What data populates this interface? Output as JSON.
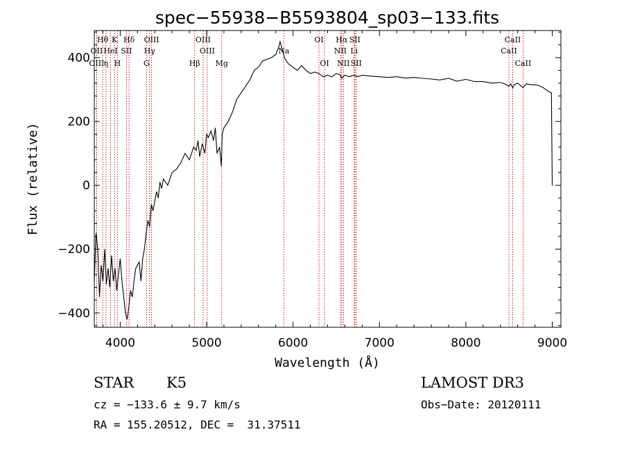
{
  "chart_data": {
    "type": "line",
    "title": "spec−55938−B5593804_sp03−133.fits",
    "xlabel": "Wavelength (Å)",
    "ylabel": "Flux (relative)",
    "xlim": [
      3700,
      9100
    ],
    "ylim": [
      -445,
      485
    ],
    "x_ticks": [
      4000,
      5000,
      6000,
      7000,
      8000,
      9000
    ],
    "x_tick_labels": [
      "4000",
      "5000",
      "6000",
      "7000",
      "8000",
      "9000"
    ],
    "y_ticks": [
      -400,
      -200,
      0,
      200,
      400
    ],
    "y_tick_labels": [
      "−400",
      "−200",
      "0",
      "200",
      "400"
    ],
    "series": [
      {
        "name": "spectrum",
        "x": [
          3700,
          3720,
          3740,
          3760,
          3780,
          3800,
          3820,
          3840,
          3860,
          3880,
          3900,
          3920,
          3940,
          3960,
          3980,
          4000,
          4020,
          4040,
          4060,
          4080,
          4100,
          4120,
          4140,
          4160,
          4180,
          4200,
          4220,
          4240,
          4260,
          4280,
          4300,
          4320,
          4340,
          4360,
          4380,
          4400,
          4420,
          4440,
          4460,
          4480,
          4500,
          4550,
          4600,
          4650,
          4700,
          4750,
          4800,
          4850,
          4880,
          4900,
          4920,
          4950,
          4980,
          5000,
          5020,
          5050,
          5080,
          5100,
          5120,
          5150,
          5170,
          5180,
          5190,
          5200,
          5250,
          5300,
          5350,
          5400,
          5450,
          5500,
          5550,
          5600,
          5650,
          5700,
          5750,
          5800,
          5830,
          5850,
          5870,
          5880,
          5893,
          5900,
          5920,
          5950,
          6000,
          6050,
          6100,
          6150,
          6200,
          6250,
          6300,
          6350,
          6400,
          6450,
          6500,
          6550,
          6563,
          6580,
          6600,
          6650,
          6700,
          6750,
          6800,
          6900,
          7000,
          7100,
          7200,
          7300,
          7400,
          7500,
          7600,
          7700,
          7800,
          7900,
          8000,
          8100,
          8200,
          8300,
          8400,
          8450,
          8498,
          8520,
          8542,
          8560,
          8600,
          8662,
          8680,
          8700,
          8750,
          8800,
          8850,
          8900,
          8950,
          8990,
          9000,
          9005
        ],
        "y": [
          -300,
          -150,
          -200,
          -350,
          -250,
          -300,
          -200,
          -310,
          -260,
          -320,
          -220,
          -300,
          -260,
          -330,
          -280,
          -230,
          -300,
          -350,
          -400,
          -420,
          -380,
          -330,
          -350,
          -300,
          -260,
          -250,
          -240,
          -300,
          -230,
          -200,
          -150,
          -110,
          -130,
          -60,
          -80,
          -50,
          -20,
          -40,
          10,
          -10,
          20,
          0,
          40,
          50,
          70,
          100,
          80,
          120,
          110,
          140,
          90,
          130,
          100,
          160,
          150,
          170,
          140,
          180,
          100,
          120,
          60,
          160,
          170,
          180,
          200,
          230,
          270,
          290,
          310,
          330,
          360,
          370,
          390,
          395,
          400,
          410,
          430,
          450,
          430,
          420,
          410,
          400,
          390,
          380,
          370,
          360,
          375,
          360,
          350,
          355,
          350,
          340,
          345,
          340,
          350,
          345,
          335,
          340,
          345,
          340,
          345,
          340,
          345,
          342,
          340,
          338,
          340,
          336,
          338,
          335,
          333,
          330,
          335,
          326,
          332,
          325,
          325,
          320,
          322,
          318,
          310,
          318,
          305,
          315,
          320,
          306,
          312,
          318,
          315,
          315,
          312,
          305,
          295,
          290,
          0,
          0
        ]
      }
    ],
    "lines": [
      {
        "label": "Hθ",
        "x": 3797,
        "row": 1
      },
      {
        "label": "OII",
        "x": 3727,
        "row": 2
      },
      {
        "label": "OIII",
        "x": 3727,
        "row": 3
      },
      {
        "label": "K",
        "x": 3934,
        "row": 1
      },
      {
        "label": "HeI",
        "x": 3889,
        "row": 2
      },
      {
        "label": "η",
        "x": 3835,
        "row": 3
      },
      {
        "label": "Hδ",
        "x": 4102,
        "row": 1
      },
      {
        "label": "SII",
        "x": 4072,
        "row": 2
      },
      {
        "label": "H",
        "x": 3968,
        "row": 3
      },
      {
        "label": "OIII",
        "x": 4363,
        "row": 1
      },
      {
        "label": "Hγ",
        "x": 4340,
        "row": 2
      },
      {
        "label": "G",
        "x": 4305,
        "row": 3
      },
      {
        "label": "OIII",
        "x": 4959,
        "row": 1
      },
      {
        "label": "OIII",
        "x": 5007,
        "row": 2
      },
      {
        "label": "Hβ",
        "x": 4861,
        "row": 3
      },
      {
        "label": "Mg",
        "x": 5175,
        "row": 3
      },
      {
        "label": "Na",
        "x": 5893,
        "row": 2
      },
      {
        "label": "OI",
        "x": 6300,
        "row": 1
      },
      {
        "label": "OI",
        "x": 6364,
        "row": 3
      },
      {
        "label": "Hα",
        "x": 6563,
        "row": 1
      },
      {
        "label": "NII",
        "x": 6548,
        "row": 2
      },
      {
        "label": "NII",
        "x": 6583,
        "row": 3
      },
      {
        "label": "SII",
        "x": 6716,
        "row": 1
      },
      {
        "label": "Li",
        "x": 6707,
        "row": 2
      },
      {
        "label": "SII",
        "x": 6731,
        "row": 3
      },
      {
        "label": "CaII",
        "x": 8542,
        "row": 1
      },
      {
        "label": "CaII",
        "x": 8498,
        "row": 2
      },
      {
        "label": "CaII",
        "x": 8662,
        "row": 3
      }
    ],
    "colors": {
      "spectrum": "#000000",
      "line_markers": "#c00000",
      "axes": "#000000"
    }
  },
  "info": {
    "class": "STAR",
    "subclass": "K5",
    "survey": "LAMOST DR3",
    "cz": "cz = −133.6 ± 9.7 km/s",
    "obs_date": "Obs−Date: 20120111",
    "coords": "RA = 155.20512, DEC =  31.37511"
  }
}
